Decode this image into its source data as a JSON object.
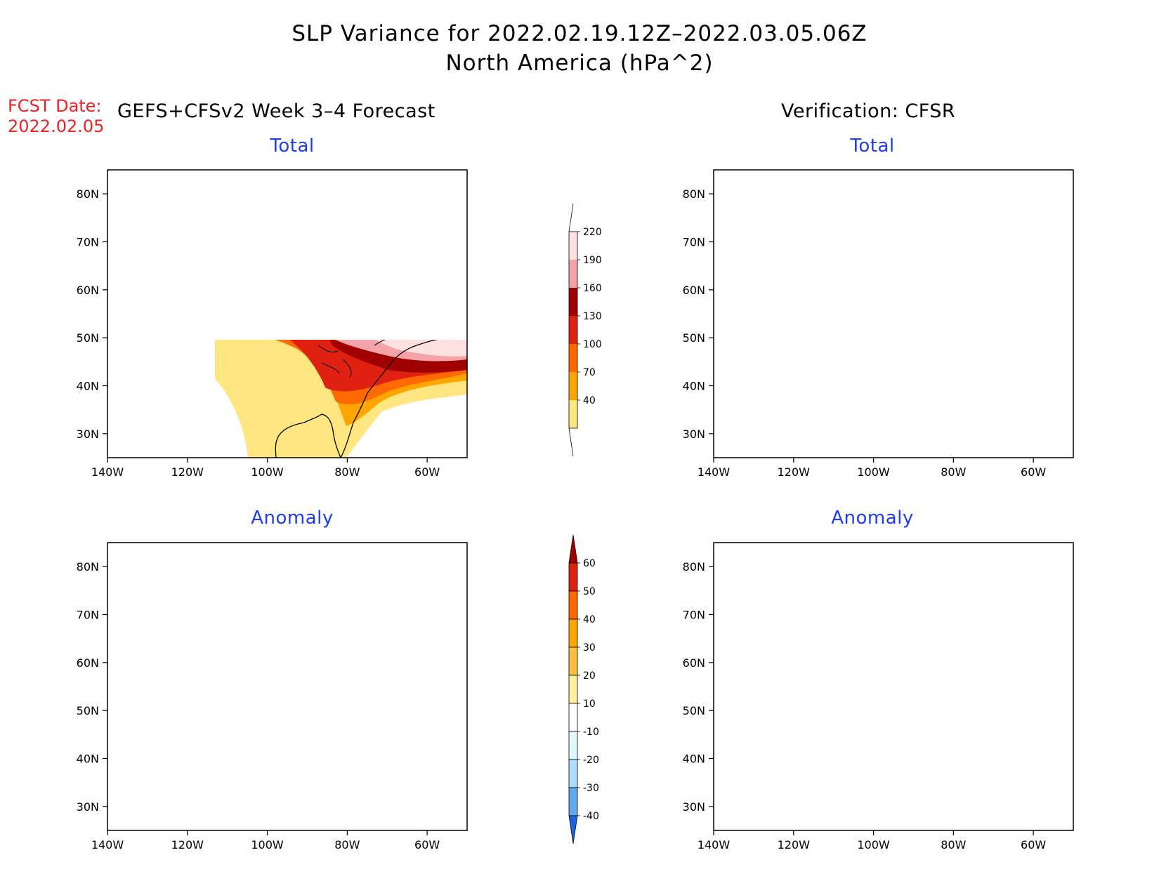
{
  "title_line1": "SLP Variance for 2022.02.19.12Z–2022.03.05.06Z",
  "title_line2": "North America (hPa^2)",
  "fcst_date_label": "FCST Date:",
  "fcst_date_value": "2022.02.05",
  "left_column_title": "GEFS+CFSv2 Week 3–4 Forecast",
  "right_column_title": "Verification: CFSR",
  "panels": [
    {
      "id": "fcst-total",
      "title": "Total",
      "kind": "total"
    },
    {
      "id": "cfsr-total",
      "title": "Total",
      "kind": "total"
    },
    {
      "id": "fcst-anomaly",
      "title": "Anomaly",
      "kind": "anomaly"
    },
    {
      "id": "cfsr-anomaly",
      "title": "Anomaly",
      "kind": "anomaly"
    }
  ],
  "lat_ticks": [
    "80N",
    "70N",
    "60N",
    "50N",
    "40N",
    "30N"
  ],
  "lon_ticks": [
    "140W",
    "120W",
    "100W",
    "80W",
    "60W"
  ],
  "map_extent": {
    "lon": [
      -140,
      -50
    ],
    "lat": [
      25,
      85
    ]
  },
  "total_colorbar": {
    "labels": [
      "220",
      "190",
      "160",
      "130",
      "100",
      "70",
      "40"
    ],
    "colors": [
      "#fde0e0",
      "#f4a3a8",
      "#a00000",
      "#e02010",
      "#ff6a00",
      "#ffa500",
      "#ffe680"
    ]
  },
  "anomaly_colorbar": {
    "labels": [
      "60",
      "50",
      "40",
      "30",
      "20",
      "10",
      "-10",
      "-20",
      "-30",
      "-40"
    ],
    "colors": [
      "#a00000",
      "#e02010",
      "#ff6a00",
      "#ffa500",
      "#ffc040",
      "#fff0a0",
      "#ffffff",
      "#e0f8ff",
      "#b0dcff",
      "#60a8f0",
      "#1e64e0"
    ]
  }
}
